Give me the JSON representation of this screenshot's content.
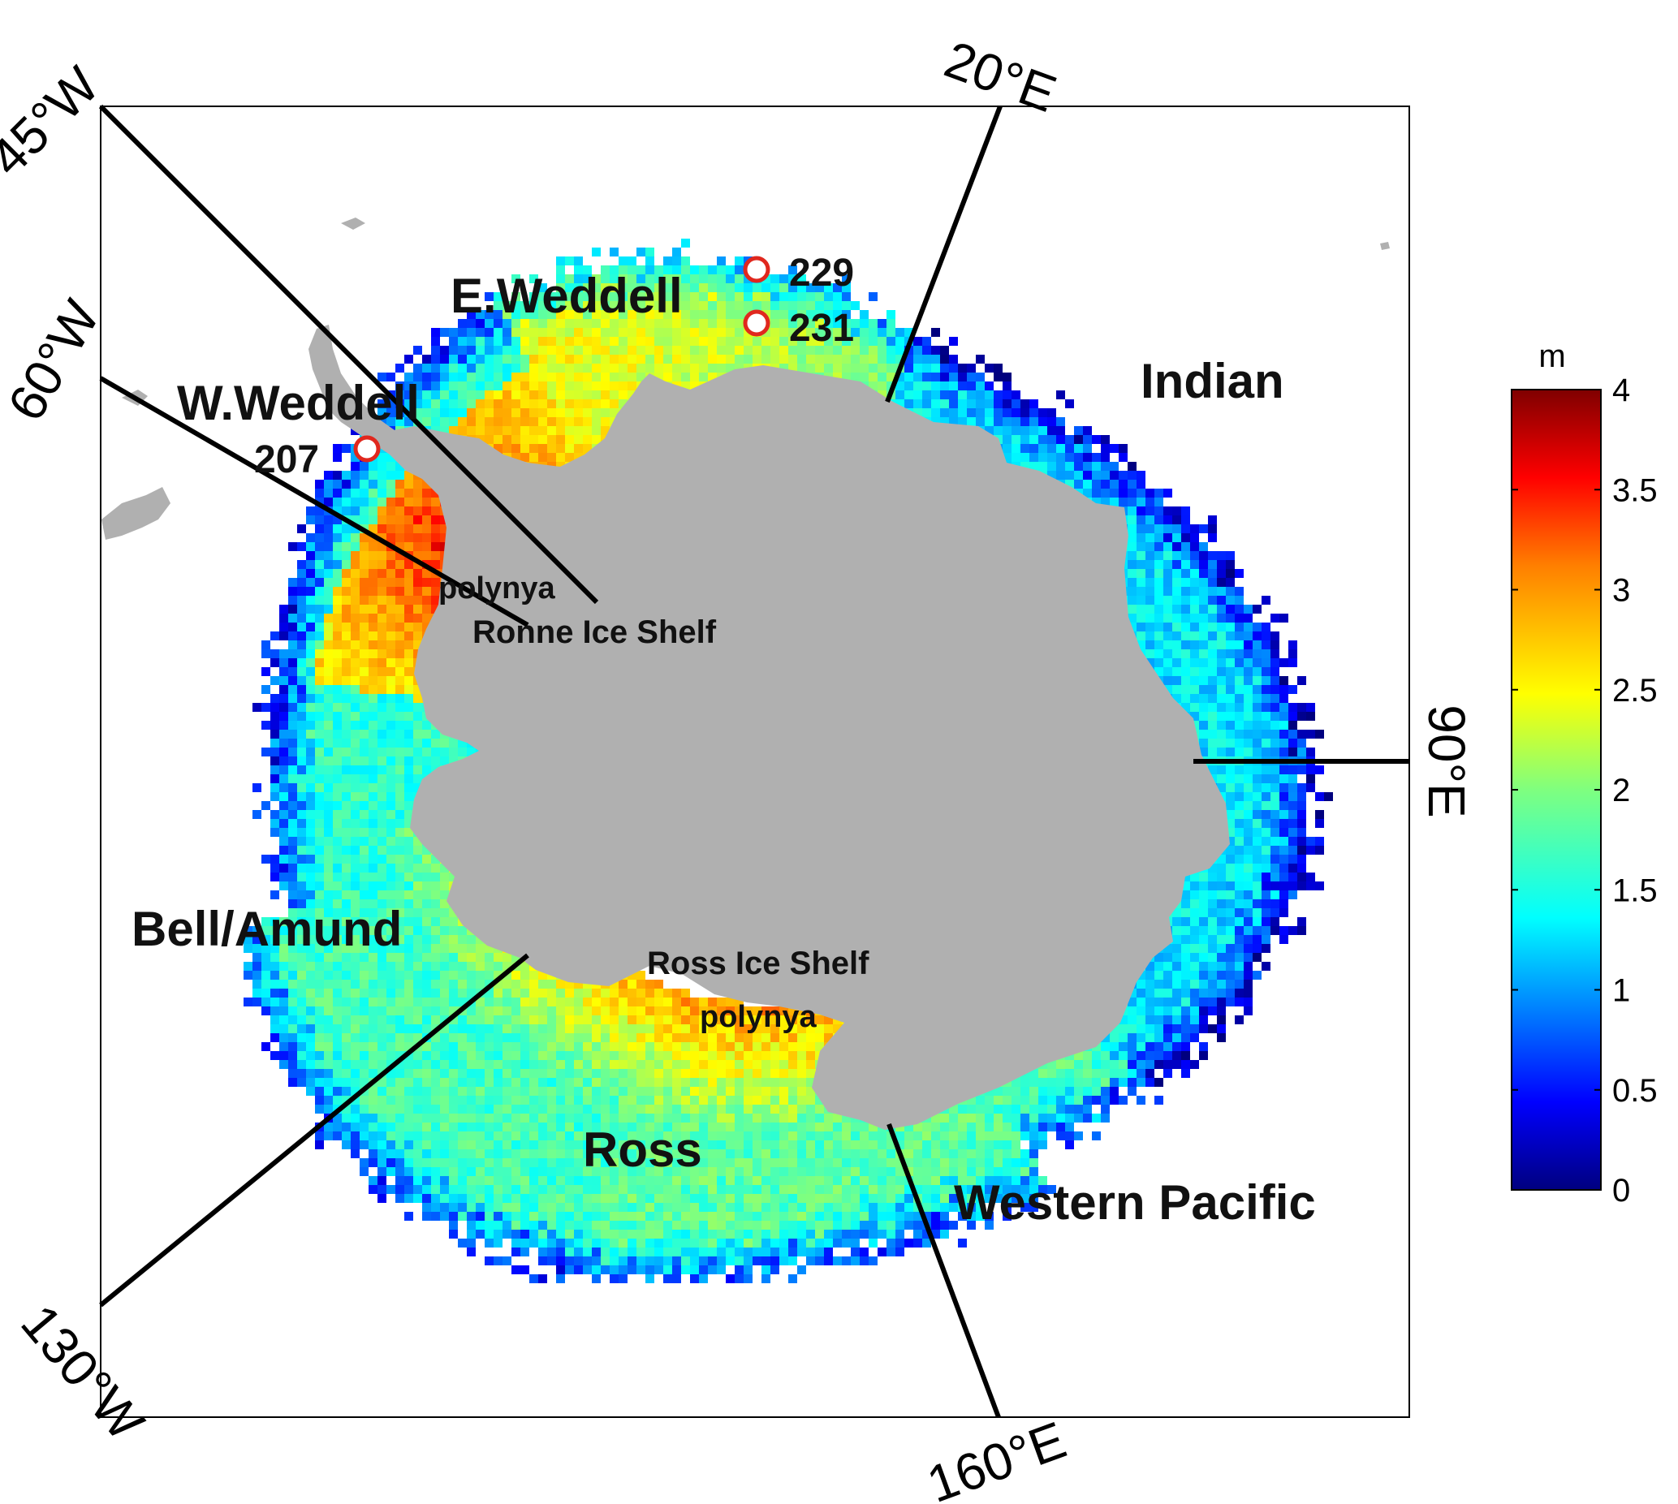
{
  "map": {
    "projection": "south-polar stereographic",
    "variable_units": "m",
    "sectors": [
      {
        "id": "w-weddell",
        "label": "W.Weddell"
      },
      {
        "id": "e-weddell",
        "label": "E.Weddell"
      },
      {
        "id": "indian",
        "label": "Indian"
      },
      {
        "id": "western-pacific",
        "label": "Western Pacific"
      },
      {
        "id": "ross",
        "label": "Ross"
      },
      {
        "id": "bell-amund",
        "label": "Bell/Amund"
      }
    ],
    "meridians": [
      "45°W",
      "20°E",
      "60°W",
      "90°E",
      "130°W",
      "160°E"
    ],
    "features": {
      "ronne_ice_shelf": "Ronne Ice Shelf",
      "ronne_polynya": "polynya",
      "ross_ice_shelf": "Ross Ice Shelf",
      "ross_polynya": "polynya"
    },
    "stations": [
      {
        "id": "207",
        "label": "207"
      },
      {
        "id": "229",
        "label": "229"
      },
      {
        "id": "231",
        "label": "231"
      }
    ],
    "colors": {
      "land": "#b0b0b0",
      "station_ring": "#e0281e",
      "station_fill": "#ffffff",
      "meridian_line": "#000000"
    }
  },
  "colorbar": {
    "title": "m",
    "range": [
      0,
      4
    ],
    "ticks": [
      "0",
      "0.5",
      "1",
      "1.5",
      "2",
      "2.5",
      "3",
      "3.5",
      "4"
    ],
    "colormap": "jet"
  }
}
